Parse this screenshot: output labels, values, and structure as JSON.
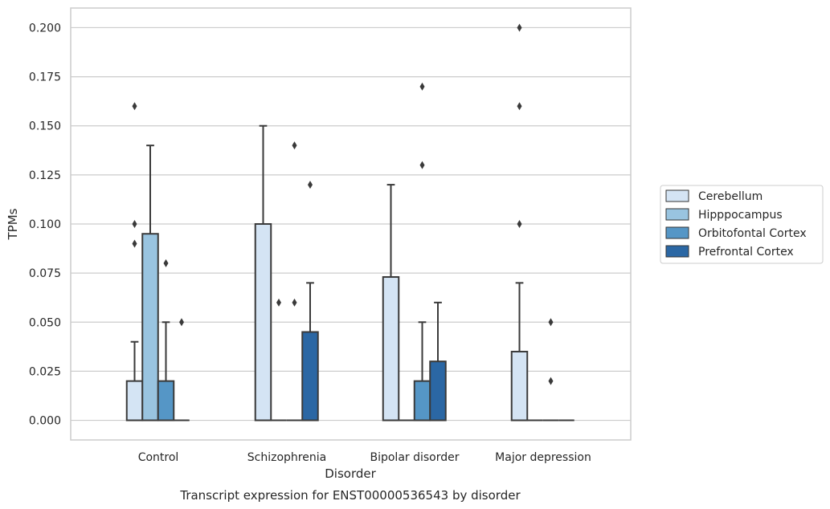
{
  "chart_data": {
    "type": "box",
    "title": "Transcript expression for ENST00000536543 by disorder",
    "xlabel": "Disorder",
    "ylabel": "TPMs",
    "ylim": [
      -0.01,
      0.21
    ],
    "yticks": [
      0.0,
      0.025,
      0.05,
      0.075,
      0.1,
      0.125,
      0.15,
      0.175,
      0.2
    ],
    "ytick_labels": [
      "0.000",
      "0.025",
      "0.050",
      "0.075",
      "0.100",
      "0.125",
      "0.150",
      "0.175",
      "0.200"
    ],
    "grid": "horizontal",
    "legend_position": "right",
    "categories": [
      "Control",
      "Schizophrenia",
      "Bipolar disorder",
      "Major depression"
    ],
    "series": [
      {
        "name": "Cerebellum",
        "color": "#d4e4f4",
        "boxes": [
          {
            "q1": 0.0,
            "median": 0.0,
            "q3": 0.02,
            "whisker_low": 0.0,
            "whisker_high": 0.04,
            "outliers": [
              0.09,
              0.1,
              0.16
            ]
          },
          {
            "q1": 0.0,
            "median": 0.0,
            "q3": 0.1,
            "whisker_low": 0.0,
            "whisker_high": 0.15,
            "outliers": []
          },
          {
            "q1": 0.0,
            "median": 0.0,
            "q3": 0.073,
            "whisker_low": 0.0,
            "whisker_high": 0.12,
            "outliers": []
          },
          {
            "q1": 0.0,
            "median": 0.0,
            "q3": 0.035,
            "whisker_low": 0.0,
            "whisker_high": 0.07,
            "outliers": [
              0.1,
              0.16,
              0.2
            ]
          }
        ]
      },
      {
        "name": "Hipppocampus",
        "color": "#99c4e0",
        "boxes": [
          {
            "q1": 0.0,
            "median": 0.0,
            "q3": 0.095,
            "whisker_low": 0.0,
            "whisker_high": 0.14,
            "outliers": []
          },
          {
            "q1": 0.0,
            "median": 0.0,
            "q3": 0.0,
            "whisker_low": 0.0,
            "whisker_high": 0.0,
            "outliers": [
              0.06
            ]
          },
          {
            "q1": 0.0,
            "median": 0.0,
            "q3": 0.0,
            "whisker_low": 0.0,
            "whisker_high": 0.0,
            "outliers": []
          },
          {
            "q1": 0.0,
            "median": 0.0,
            "q3": 0.0,
            "whisker_low": 0.0,
            "whisker_high": 0.0,
            "outliers": []
          }
        ]
      },
      {
        "name": "Orbitofontal Cortex",
        "color": "#5596c6",
        "boxes": [
          {
            "q1": 0.0,
            "median": 0.0,
            "q3": 0.02,
            "whisker_low": 0.0,
            "whisker_high": 0.05,
            "outliers": [
              0.08
            ]
          },
          {
            "q1": 0.0,
            "median": 0.0,
            "q3": 0.0,
            "whisker_low": 0.0,
            "whisker_high": 0.0,
            "outliers": [
              0.06,
              0.14
            ]
          },
          {
            "q1": 0.0,
            "median": 0.0,
            "q3": 0.02,
            "whisker_low": 0.0,
            "whisker_high": 0.05,
            "outliers": [
              0.13,
              0.17
            ]
          },
          {
            "q1": 0.0,
            "median": 0.0,
            "q3": 0.0,
            "whisker_low": 0.0,
            "whisker_high": 0.0,
            "outliers": [
              0.02,
              0.05
            ]
          }
        ]
      },
      {
        "name": "Prefrontal Cortex",
        "color": "#2b67a4",
        "boxes": [
          {
            "q1": 0.0,
            "median": 0.0,
            "q3": 0.0,
            "whisker_low": 0.0,
            "whisker_high": 0.0,
            "outliers": [
              0.05
            ]
          },
          {
            "q1": 0.0,
            "median": 0.0,
            "q3": 0.045,
            "whisker_low": 0.0,
            "whisker_high": 0.07,
            "outliers": [
              0.12
            ]
          },
          {
            "q1": 0.0,
            "median": 0.0,
            "q3": 0.03,
            "whisker_low": 0.0,
            "whisker_high": 0.06,
            "outliers": []
          },
          {
            "q1": 0.0,
            "median": 0.0,
            "q3": 0.0,
            "whisker_low": 0.0,
            "whisker_high": 0.0,
            "outliers": []
          }
        ]
      }
    ]
  }
}
